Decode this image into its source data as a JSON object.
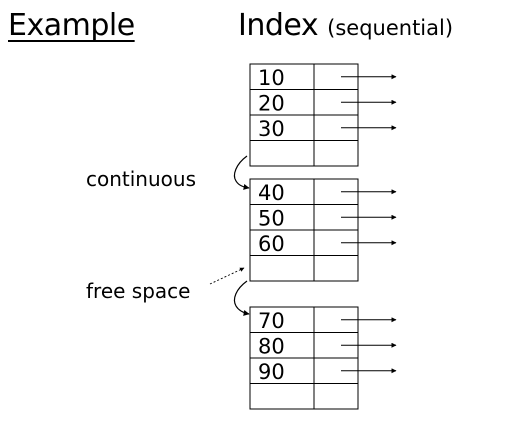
{
  "title": {
    "left": "Example",
    "right_main": "Index",
    "right_sub": "(sequential)"
  },
  "labels": {
    "continuous": "continuous",
    "free_space": "free space"
  },
  "blocks": [
    {
      "keys": [
        "10",
        "20",
        "30",
        ""
      ]
    },
    {
      "keys": [
        "40",
        "50",
        "60",
        ""
      ]
    },
    {
      "keys": [
        "70",
        "80",
        "90",
        ""
      ]
    }
  ],
  "colors": {
    "line": "#000000",
    "background": "#ffffff"
  }
}
